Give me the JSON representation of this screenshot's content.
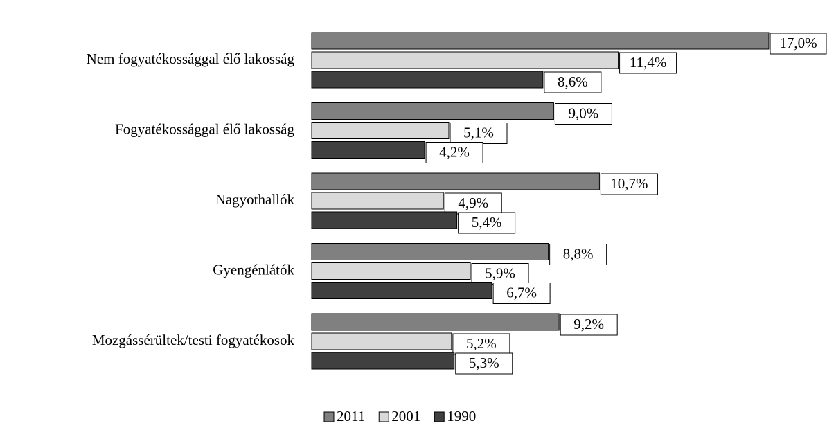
{
  "chart_data": {
    "type": "bar",
    "orientation": "horizontal",
    "categories": [
      "Nem fogyatékossággal élő lakosság",
      "Fogyatékossággal élő lakosság",
      "Nagyothallók",
      "Gyengénlátók",
      "Mozgássérültek/testi fogyatékosok"
    ],
    "series": [
      {
        "name": "2011",
        "color": "#808080",
        "values": [
          17.0,
          9.0,
          10.7,
          8.8,
          9.2
        ],
        "value_labels": [
          "17,0%",
          "9,0%",
          "10,7%",
          "8,8%",
          "9,2%"
        ]
      },
      {
        "name": "2001",
        "color": "#d9d9d9",
        "values": [
          11.4,
          5.1,
          4.9,
          5.9,
          5.2
        ],
        "value_labels": [
          "11,4%",
          "5,1%",
          "4,9%",
          "5,9%",
          "5,2%"
        ]
      },
      {
        "name": "1990",
        "color": "#404040",
        "values": [
          8.6,
          4.2,
          5.4,
          6.7,
          5.3
        ],
        "value_labels": [
          "8,6%",
          "4,2%",
          "5,4%",
          "6,7%",
          "5,3%"
        ]
      }
    ],
    "legend": "bottom"
  }
}
